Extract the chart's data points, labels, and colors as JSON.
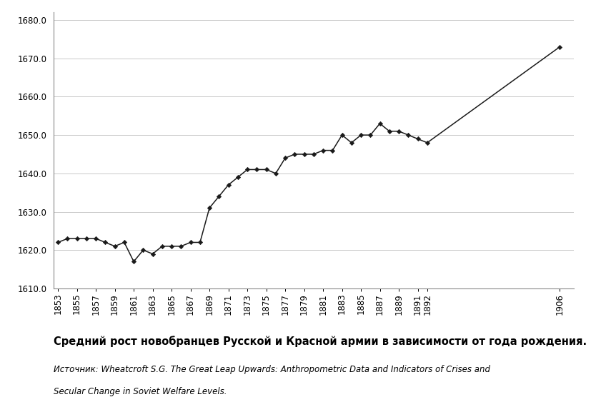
{
  "heights": [
    1622,
    1623,
    1623,
    1623,
    1623,
    1622,
    1621,
    1622,
    1617,
    1620,
    1619,
    1621,
    1621,
    1621,
    1622,
    1622,
    1631,
    1634,
    1637,
    1639,
    1641,
    1641,
    1641,
    1640,
    1644,
    1645,
    1645,
    1645,
    1646,
    1646,
    1650,
    1648,
    1650,
    1650,
    1653,
    1651,
    1651,
    1650,
    1649,
    1648,
    1673
  ],
  "x_positions": [
    0,
    1,
    2,
    3,
    4,
    5,
    6,
    7,
    8,
    9,
    10,
    11,
    12,
    13,
    14,
    15,
    16,
    17,
    18,
    19,
    20,
    21,
    22,
    23,
    24,
    25,
    26,
    27,
    28,
    29,
    30,
    31,
    32,
    33,
    34,
    35,
    36,
    37,
    38,
    39,
    53
  ],
  "xtick_positions": [
    0,
    2,
    4,
    6,
    8,
    10,
    12,
    14,
    16,
    18,
    20,
    22,
    24,
    26,
    28,
    30,
    32,
    34,
    36,
    38,
    39,
    53
  ],
  "xtick_labels": [
    "1853",
    "1855",
    "1857",
    "1859",
    "1861",
    "1863",
    "1865",
    "1867",
    "1869",
    "1871",
    "1873",
    "1875",
    "1877",
    "1879",
    "1881",
    "1883",
    "1885",
    "1887",
    "1889",
    "1891",
    "1892",
    "1906"
  ],
  "ytick_values": [
    1610,
    1620,
    1630,
    1640,
    1650,
    1660,
    1670,
    1680
  ],
  "ylim": [
    1610,
    1682
  ],
  "xlim_left": -0.5,
  "xlim_right": 54.5,
  "title": "Средний рост новобранцев Русской и Красной армии в зависимости от года рождения.",
  "source_line1": "Источник: Wheatcroft S.G. The Great Leap Upwards: Anthropometric Data and Indicators of Crises and",
  "source_line2": "Secular Change in Soviet Welfare Levels.",
  "line_color": "#1a1a1a",
  "marker_color": "#1a1a1a",
  "bg_color": "#ffffff",
  "grid_color": "#c8c8c8",
  "title_fontsize": 10.5,
  "source_fontsize": 8.5
}
